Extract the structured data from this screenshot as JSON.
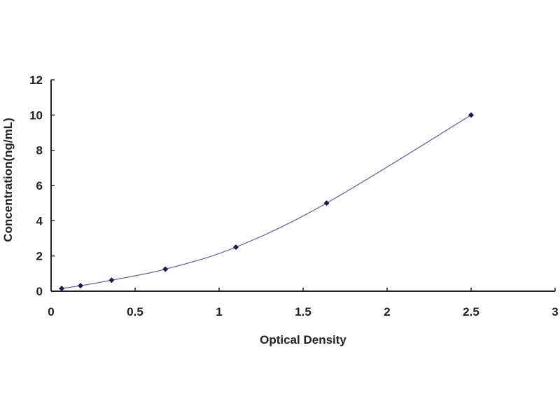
{
  "chart_data": {
    "type": "scatter",
    "title": "",
    "xlabel": "Optical Density",
    "ylabel": "Concentration(ng/mL)",
    "xlim": [
      0,
      3
    ],
    "ylim": [
      0,
      12
    ],
    "x_ticks": [
      "0",
      "0.5",
      "1",
      "1.5",
      "2",
      "2.5",
      "3"
    ],
    "y_ticks": [
      "0",
      "2",
      "4",
      "6",
      "8",
      "10",
      "12"
    ],
    "grid": false,
    "legend": "none",
    "trendline": "smooth curve",
    "series": [
      {
        "x": [
          0.063,
          0.175,
          0.36,
          0.68,
          1.1,
          1.64,
          2.5
        ],
        "y": [
          0.156,
          0.312,
          0.625,
          1.25,
          2.5,
          5,
          10
        ]
      }
    ],
    "colors": {
      "marker": "#1a1a5a",
      "line": "#6666a8",
      "axis": "#222222"
    }
  }
}
